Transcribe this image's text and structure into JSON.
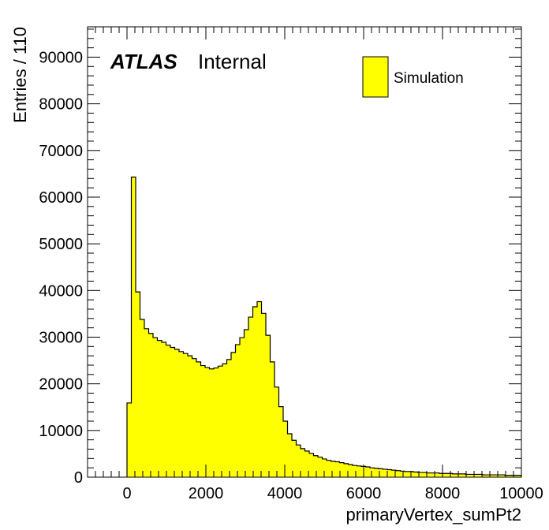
{
  "chart_data": {
    "type": "bar",
    "histogram": true,
    "xlabel": "primaryVertex_sumPt2",
    "ylabel": "Entries / 110",
    "xlim": [
      -1000,
      10000
    ],
    "ylim": [
      0,
      96500
    ],
    "bin_width": 110,
    "first_bin_low_edge": 0,
    "x_ticks": [
      0,
      2000,
      4000,
      6000,
      8000,
      10000
    ],
    "y_ticks": [
      0,
      10000,
      20000,
      30000,
      40000,
      50000,
      60000,
      70000,
      80000,
      90000
    ],
    "grid": false,
    "legend_position": "top-right",
    "fill_color": "#ffff00",
    "line_color": "#000000",
    "series": [
      {
        "name": "Simulation",
        "values": [
          15900,
          64300,
          39700,
          33800,
          31800,
          30800,
          29900,
          29300,
          28900,
          28300,
          27800,
          27400,
          26900,
          26500,
          26000,
          25400,
          24700,
          23900,
          23500,
          23200,
          23400,
          23800,
          24300,
          25200,
          26700,
          28400,
          29900,
          31600,
          34300,
          36500,
          37600,
          35100,
          30400,
          24700,
          19300,
          15100,
          12000,
          9300,
          7900,
          6900,
          6100,
          5600,
          5100,
          4600,
          4300,
          3900,
          3600,
          3400,
          3300,
          3100,
          2900,
          2700,
          2500,
          2400,
          2300,
          2200,
          2000,
          1900,
          1800,
          1700,
          1600,
          1500,
          1400,
          1300,
          1200,
          1200,
          1100,
          1000,
          1000,
          900,
          900,
          900,
          800,
          800,
          800,
          700,
          700,
          700,
          600,
          600,
          600,
          600,
          500,
          500,
          500,
          500,
          500,
          400,
          400,
          400,
          400
        ]
      }
    ]
  },
  "atlas_label": {
    "logo": "ATLAS",
    "status": "Internal"
  },
  "legend": {
    "entries": [
      "Simulation"
    ]
  }
}
